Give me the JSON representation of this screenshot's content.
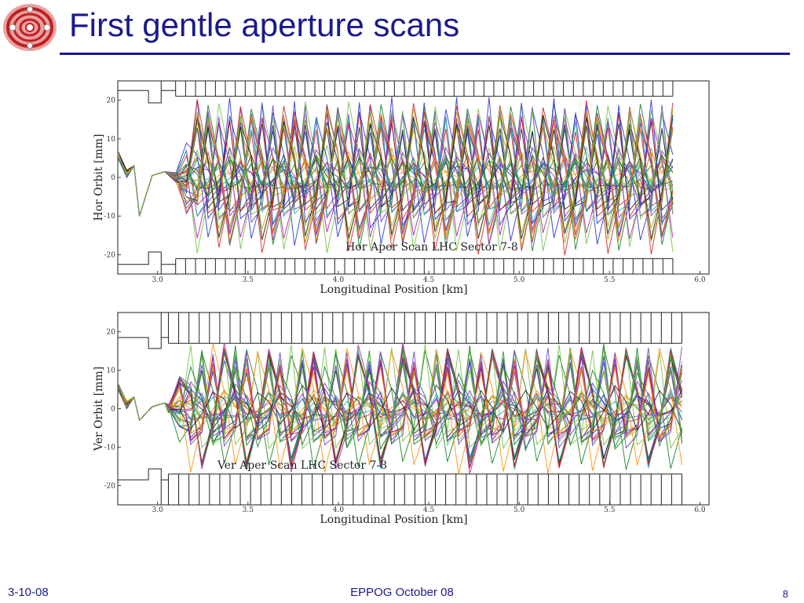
{
  "slide": {
    "title": "First gentle aperture scans",
    "footer_left": "3-10-08",
    "footer_center": "EPPOG October 08",
    "page_number": "8"
  },
  "colors": {
    "title": "#1a1a8c",
    "series_palette": [
      "#1f2fd0",
      "#0a7d1a",
      "#d01f1f",
      "#18a8a8",
      "#b018b0",
      "#a8a818",
      "#222222",
      "#ff8c00",
      "#6a3dc8",
      "#6fbf3f"
    ]
  },
  "logo": {
    "icon": "lhc-logo-icon"
  },
  "chart_data": [
    {
      "type": "line",
      "title": "Hor Aper Scan LHC Sector 7-8",
      "xlabel": "Longitudinal Position [km]",
      "ylabel": "Hor Orbit [mm]",
      "xlim": [
        2.78,
        6.05
      ],
      "ylim": [
        -25,
        25
      ],
      "xticks": [
        "3.0",
        "3.5",
        "4.0",
        "4.5",
        "5.0",
        "5.5",
        "6.0"
      ],
      "xtick_values": [
        3.0,
        3.5,
        4.0,
        4.5,
        5.0,
        5.5,
        6.0
      ],
      "yticks": [
        "20",
        "10",
        "0",
        "-10",
        "-20"
      ],
      "ytick_values": [
        20,
        10,
        0,
        -10,
        -20
      ],
      "grid": false,
      "series_count": 40,
      "lattice_start_km": 3.1,
      "lattice_end_km": 5.85,
      "orbit_amplitude_mm": [
        12,
        20
      ],
      "aperture_mm": 21
    },
    {
      "type": "line",
      "title": "Ver Aper Scan LHC Sector 7-8",
      "xlabel": "Longitudinal Position [km]",
      "ylabel": "Ver Orbit [mm]",
      "xlim": [
        2.78,
        6.05
      ],
      "ylim": [
        -25,
        25
      ],
      "xticks": [
        "3.0",
        "3.5",
        "4.0",
        "4.5",
        "5.0",
        "5.5",
        "6.0"
      ],
      "xtick_values": [
        3.0,
        3.5,
        4.0,
        4.5,
        5.0,
        5.5,
        6.0
      ],
      "yticks": [
        "20",
        "10",
        "0",
        "-10",
        "-20"
      ],
      "ytick_values": [
        20,
        10,
        0,
        -10,
        -20
      ],
      "grid": false,
      "series_count": 40,
      "lattice_start_km": 3.06,
      "lattice_end_km": 5.9,
      "orbit_amplitude_mm": [
        10,
        16
      ],
      "aperture_mm": 17
    }
  ]
}
